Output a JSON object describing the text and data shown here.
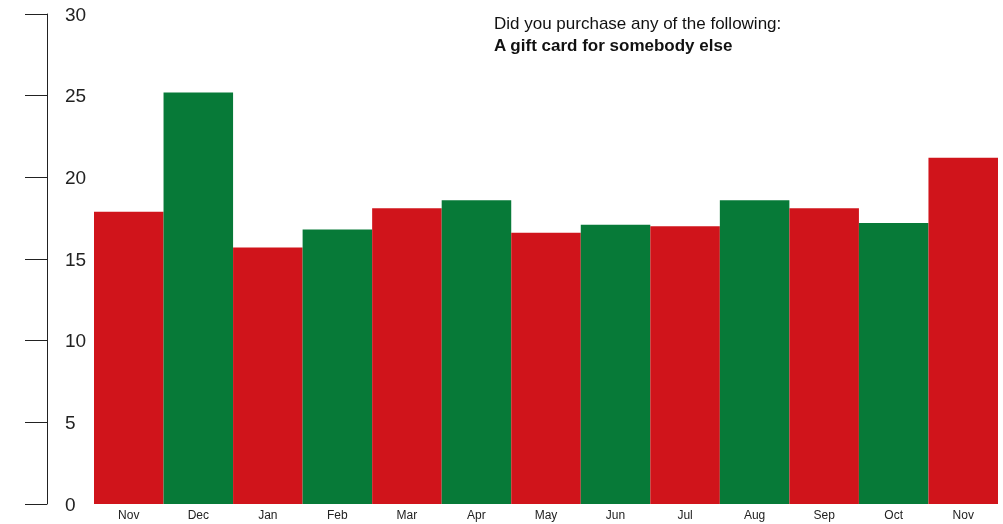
{
  "chart_data": {
    "type": "bar",
    "title": "A gift card for somebody else",
    "subtitle": "Did you purchase any of the following:",
    "categories": [
      "Nov",
      "Dec",
      "Jan",
      "Feb",
      "Mar",
      "Apr",
      "May",
      "Jun",
      "Jul",
      "Aug",
      "Sep",
      "Oct",
      "Nov"
    ],
    "values": [
      17.9,
      25.2,
      15.7,
      16.8,
      18.1,
      18.6,
      16.6,
      17.1,
      17.0,
      18.6,
      18.1,
      17.2,
      21.2
    ],
    "colors": [
      "#d0141b",
      "#077a38",
      "#d0141b",
      "#077a38",
      "#d0141b",
      "#077a38",
      "#d0141b",
      "#077a38",
      "#d0141b",
      "#077a38",
      "#d0141b",
      "#077a38",
      "#d0141b"
    ],
    "ylim": [
      0,
      30
    ],
    "yticks": [
      0,
      5,
      10,
      15,
      20,
      25,
      30
    ]
  }
}
